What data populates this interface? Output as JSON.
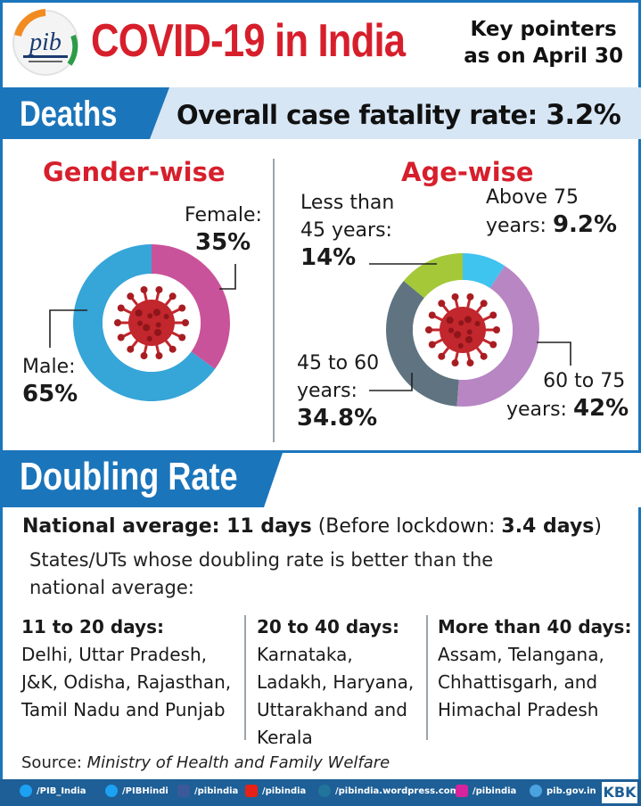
{
  "header": {
    "logo_text": "pib",
    "title": "COVID-19 in India",
    "key_pointers_line1": "Key pointers",
    "key_pointers_line2": "as on April 30"
  },
  "deaths": {
    "banner": "Deaths",
    "fatality_label": "Overall case fatality rate:",
    "fatality_value": "3.2%",
    "gender": {
      "heading": "Gender-wise",
      "female_label": "Female:",
      "female_value": "35%",
      "male_label": "Male:",
      "male_value": "65%"
    },
    "age": {
      "heading": "Age-wise",
      "under45_line1": "Less than",
      "under45_line2": "45 years:",
      "under45_value": "14%",
      "over75_line1": "Above 75",
      "over75_line2": "years:",
      "over75_value": "9.2%",
      "age45_60_line1": "45 to 60",
      "age45_60_line2": "years:",
      "age45_60_value": "34.8%",
      "age60_75_line1": "60 to 75",
      "age60_75_line2": "years:",
      "age60_75_value": "42%"
    }
  },
  "chart_data": [
    {
      "type": "pie",
      "title": "Gender-wise",
      "categories": [
        "Female",
        "Male"
      ],
      "values": [
        35,
        65
      ],
      "colors": [
        "#c9539a",
        "#36a5d8"
      ]
    },
    {
      "type": "pie",
      "title": "Age-wise",
      "categories": [
        "Above 75 years",
        "60 to 75 years",
        "45 to 60 years",
        "Less than 45 years"
      ],
      "values": [
        9.2,
        42,
        34.8,
        14
      ],
      "colors": [
        "#3fc3ef",
        "#b886c3",
        "#5f7480",
        "#a4c838"
      ]
    }
  ],
  "doubling": {
    "banner": "Doubling Rate",
    "national_label": "National average: 11 days",
    "before_label": "(Before lockdown: ",
    "before_value": "3.4 days",
    "before_close": ")",
    "states_line1": "States/UTs whose doubling rate is better than the",
    "states_line2": "national average:",
    "columns": [
      {
        "heading": "11 to 20 days:",
        "lines": [
          "Delhi, Uttar Pradesh,",
          "J&K, Odisha, Rajasthan,",
          "Tamil Nadu and Punjab"
        ]
      },
      {
        "heading": "20 to 40 days:",
        "lines": [
          "Karnataka,",
          "Ladakh, Haryana,",
          "Uttarakhand and",
          "Kerala"
        ]
      },
      {
        "heading": "More than 40 days:",
        "lines": [
          "Assam, Telangana,",
          "Chhattisgarh, and",
          "Himachal Pradesh"
        ]
      }
    ],
    "source_label": "Source: ",
    "source_value": "Ministry of Health and Family Welfare"
  },
  "footer": {
    "links": [
      {
        "label": "/PIB_India",
        "icon": "twitter-icon"
      },
      {
        "label": "/PIBHindi",
        "icon": "twitter-icon"
      },
      {
        "label": "/pibindia",
        "icon": "facebook-icon"
      },
      {
        "label": "/pibindia",
        "icon": "youtube-icon"
      },
      {
        "label": "/pibindia.wordpress.com",
        "icon": "wordpress-icon"
      },
      {
        "label": "/pibindia",
        "icon": "instagram-icon"
      },
      {
        "label": "pib.gov.in",
        "icon": "globe-icon"
      }
    ],
    "badge": "KBK"
  },
  "colors": {
    "brand_blue": "#1b75bb",
    "title_red": "#d71f2c",
    "footer_blue": "#1d5f96"
  }
}
